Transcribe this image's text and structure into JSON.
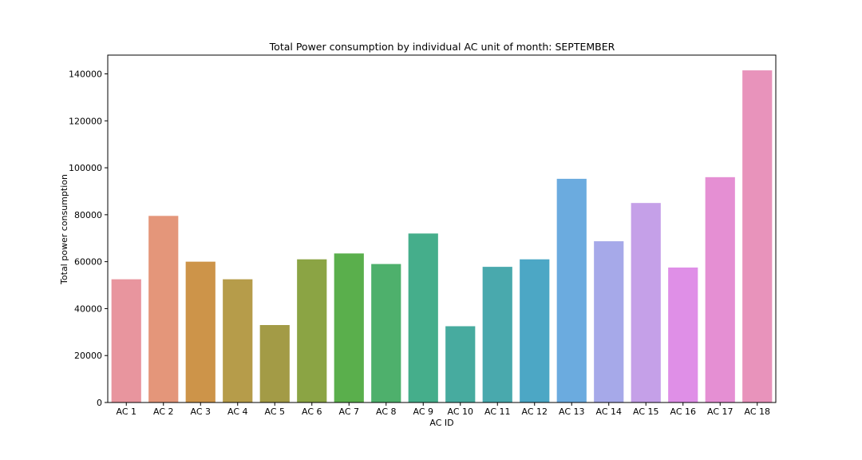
{
  "chart_data": {
    "type": "bar",
    "title": "Total Power consumption by individual AC unit of month: SEPTEMBER",
    "xlabel": "AC ID",
    "ylabel": "Total power consumption",
    "ylim": [
      0,
      148000
    ],
    "yticks": [
      0,
      20000,
      40000,
      60000,
      80000,
      100000,
      120000,
      140000
    ],
    "grid": false,
    "legend": "none",
    "categories": [
      "AC 1",
      "AC 2",
      "AC 3",
      "AC 4",
      "AC 5",
      "AC 6",
      "AC 7",
      "AC 8",
      "AC 9",
      "AC 10",
      "AC 11",
      "AC 12",
      "AC 13",
      "AC 14",
      "AC 15",
      "AC 16",
      "AC 17",
      "AC 18"
    ],
    "values": [
      52500,
      79500,
      60000,
      52500,
      33000,
      61000,
      63500,
      59000,
      72000,
      32500,
      57800,
      61000,
      95300,
      68700,
      85000,
      57500,
      96000,
      141500
    ],
    "colors": [
      "#e8959e",
      "#e4967a",
      "#cd9449",
      "#b69c4a",
      "#a39b46",
      "#8ba444",
      "#5aaf4c",
      "#4eb06c",
      "#45ae8b",
      "#47ab9f",
      "#49a9ad",
      "#4ca7c5",
      "#6babdf",
      "#a6a9e9",
      "#c5a0e8",
      "#df8fe7",
      "#e58fd3",
      "#e893bb"
    ],
    "axis_color": "#000000"
  }
}
